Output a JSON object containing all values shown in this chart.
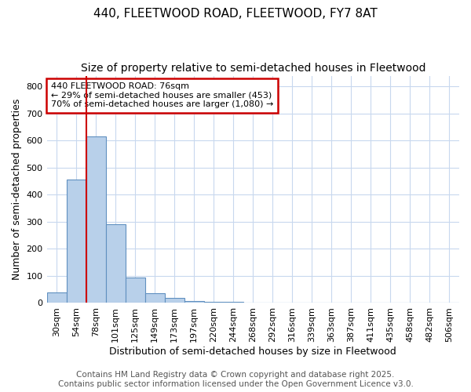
{
  "title": "440, FLEETWOOD ROAD, FLEETWOOD, FY7 8AT",
  "subtitle": "Size of property relative to semi-detached houses in Fleetwood",
  "xlabel": "Distribution of semi-detached houses by size in Fleetwood",
  "ylabel": "Number of semi-detached properties",
  "categories": [
    "30sqm",
    "54sqm",
    "78sqm",
    "101sqm",
    "125sqm",
    "149sqm",
    "173sqm",
    "197sqm",
    "220sqm",
    "244sqm",
    "268sqm",
    "292sqm",
    "316sqm",
    "339sqm",
    "363sqm",
    "387sqm",
    "411sqm",
    "435sqm",
    "458sqm",
    "482sqm",
    "506sqm"
  ],
  "values": [
    40,
    455,
    615,
    290,
    95,
    35,
    18,
    8,
    5,
    5,
    0,
    0,
    0,
    0,
    0,
    0,
    0,
    0,
    0,
    0,
    0
  ],
  "bar_color": "#b8d0ea",
  "bar_edge_color": "#6090c0",
  "red_line_x": 1.5,
  "annotation_text": "440 FLEETWOOD ROAD: 76sqm\n← 29% of semi-detached houses are smaller (453)\n70% of semi-detached houses are larger (1,080) →",
  "annotation_box_color": "#ffffff",
  "annotation_border_color": "#cc0000",
  "ylim": [
    0,
    840
  ],
  "yticks": [
    0,
    100,
    200,
    300,
    400,
    500,
    600,
    700,
    800
  ],
  "footer_line1": "Contains HM Land Registry data © Crown copyright and database right 2025.",
  "footer_line2": "Contains public sector information licensed under the Open Government Licence v3.0.",
  "background_color": "#ffffff",
  "plot_bg_color": "#ffffff",
  "grid_color": "#c8d8ee",
  "title_fontsize": 11,
  "subtitle_fontsize": 10,
  "axis_label_fontsize": 9,
  "tick_fontsize": 8,
  "footer_fontsize": 7.5,
  "annot_fontsize": 8
}
